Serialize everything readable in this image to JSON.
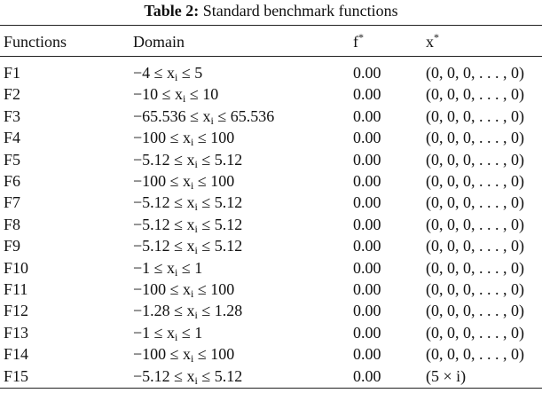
{
  "caption": {
    "label": "Table 2:",
    "title": "Standard benchmark functions"
  },
  "table": {
    "header": [
      [
        "Functions",
        ""
      ],
      [
        "Domain",
        ""
      ],
      [
        "f",
        "*"
      ],
      [
        "x",
        "*"
      ]
    ],
    "rows": [
      [
        "F1",
        [
          "−4 ≤ x",
          "i",
          " ≤ 5"
        ],
        "0.00",
        "(0, 0, 0, . . . , 0)"
      ],
      [
        "F2",
        [
          "−10 ≤ x",
          "i",
          " ≤ 10"
        ],
        "0.00",
        "(0, 0, 0, . . . , 0)"
      ],
      [
        "F3",
        [
          "−65.536 ≤ x",
          "i",
          " ≤ 65.536"
        ],
        "0.00",
        "(0, 0, 0, . . . , 0)"
      ],
      [
        "F4",
        [
          "−100 ≤ x",
          "i",
          " ≤ 100"
        ],
        "0.00",
        "(0, 0, 0, . . . , 0)"
      ],
      [
        "F5",
        [
          "−5.12 ≤ x",
          "i",
          " ≤ 5.12"
        ],
        "0.00",
        "(0, 0, 0, . . . , 0)"
      ],
      [
        "F6",
        [
          "−100 ≤ x",
          "i",
          " ≤ 100"
        ],
        "0.00",
        "(0, 0, 0, . . . , 0)"
      ],
      [
        "F7",
        [
          "−5.12 ≤ x",
          "i",
          " ≤ 5.12"
        ],
        "0.00",
        "(0, 0, 0, . . . , 0)"
      ],
      [
        "F8",
        [
          "−5.12 ≤ x",
          "i",
          " ≤ 5.12"
        ],
        "0.00",
        "(0, 0, 0, . . . , 0)"
      ],
      [
        "F9",
        [
          "−5.12 ≤ x",
          "i",
          " ≤ 5.12"
        ],
        "0.00",
        "(0, 0, 0, . . . , 0)"
      ],
      [
        "F10",
        [
          "−1 ≤ x",
          "i",
          " ≤ 1"
        ],
        "0.00",
        "(0, 0, 0, . . . , 0)"
      ],
      [
        "F11",
        [
          "−100 ≤ x",
          "i",
          " ≤ 100"
        ],
        "0.00",
        "(0, 0, 0, . . . , 0)"
      ],
      [
        "F12",
        [
          "−1.28 ≤ x",
          "i",
          " ≤ 1.28"
        ],
        "0.00",
        "(0, 0, 0, . . . , 0)"
      ],
      [
        "F13",
        [
          "−1 ≤ x",
          "i",
          " ≤ 1"
        ],
        "0.00",
        "(0, 0, 0, . . . , 0)"
      ],
      [
        "F14",
        [
          "−100 ≤ x",
          "i",
          " ≤ 100"
        ],
        "0.00",
        "(0, 0, 0, . . . , 0)"
      ],
      [
        "F15",
        [
          "−5.12 ≤ x",
          "i",
          " ≤ 5.12"
        ],
        "0.00",
        "(5 × i)"
      ]
    ]
  }
}
